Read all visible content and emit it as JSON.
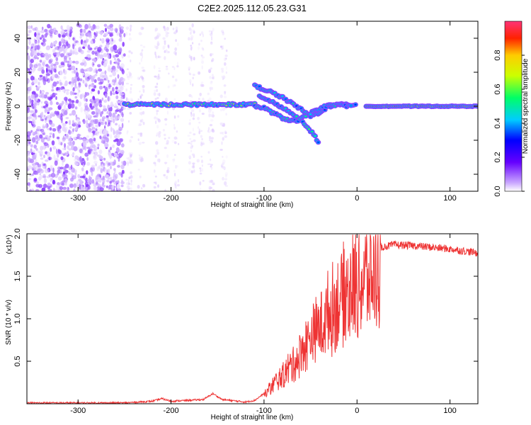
{
  "title": "C2E2.2025.112.05.23.G31",
  "chart_data": [
    {
      "type": "heatmap",
      "name": "spectrogram",
      "xlabel": "Height of straight line (km)",
      "ylabel": "Frequency (Hz)",
      "xlim": [
        -355,
        130
      ],
      "ylim": [
        -50,
        50
      ],
      "xticks": [
        -300,
        -200,
        -100,
        0,
        100
      ],
      "yticks": [
        -40,
        -20,
        0,
        20,
        40
      ],
      "grid": false,
      "colorbar": {
        "label": "Normalized spectral amplitude",
        "range": [
          0,
          1
        ],
        "ticks": [
          "0.0",
          "0.2",
          "0.4",
          "0.6",
          "0.8"
        ],
        "colors": [
          "#ffffff",
          "#c9a6ff",
          "#6600ff",
          "#0000ff",
          "#00ccff",
          "#00ff66",
          "#ccff00",
          "#ffcc00",
          "#ff2200",
          "#ff3377"
        ]
      },
      "features": [
        {
          "label": "noise-dense",
          "x_range": [
            -355,
            -250
          ],
          "y_range": [
            -50,
            48
          ],
          "amplitude": 0.15
        },
        {
          "label": "noise-sparse",
          "x_range": [
            -250,
            -135
          ],
          "y_range": [
            -50,
            48
          ],
          "amplitude": 0.05
        },
        {
          "label": "carrier",
          "x_range": [
            -250,
            -110
          ],
          "y": 1,
          "amplitude": 0.55
        },
        {
          "label": "carrier-split",
          "x_range": [
            -110,
            0
          ],
          "y": 1,
          "amplitude": 0.45
        },
        {
          "label": "carrier-tail",
          "x_range": [
            10,
            130
          ],
          "y": 0,
          "amplitude": 0.95
        }
      ]
    },
    {
      "type": "line",
      "name": "snr",
      "xlabel": "Height of straight line (km)",
      "ylabel": "SNR (10 * v/v)",
      "y_multiplier": "(x10⁴)",
      "xlim": [
        -355,
        130
      ],
      "ylim": [
        0,
        2.0
      ],
      "xticks": [
        -300,
        -200,
        -100,
        0,
        100
      ],
      "yticks": [
        "0.5",
        "1.0",
        "1.5",
        "2.0"
      ],
      "grid": false,
      "color": "#ee3333",
      "envelope": {
        "x": [
          -355,
          -250,
          -220,
          -210,
          -200,
          -165,
          -155,
          -145,
          -120,
          -110,
          -100,
          -90,
          -80,
          -70,
          -60,
          -50,
          -40,
          -30,
          -20,
          -10,
          0,
          10,
          20,
          30,
          40,
          60,
          80,
          100,
          120,
          130
        ],
        "y": [
          0.01,
          0.01,
          0.03,
          0.06,
          0.03,
          0.05,
          0.12,
          0.05,
          0.02,
          0.04,
          0.12,
          0.28,
          0.4,
          0.55,
          0.72,
          0.95,
          1.1,
          1.3,
          1.45,
          1.6,
          1.7,
          1.78,
          1.82,
          1.85,
          1.87,
          1.86,
          1.84,
          1.82,
          1.79,
          1.77
        ]
      }
    }
  ]
}
